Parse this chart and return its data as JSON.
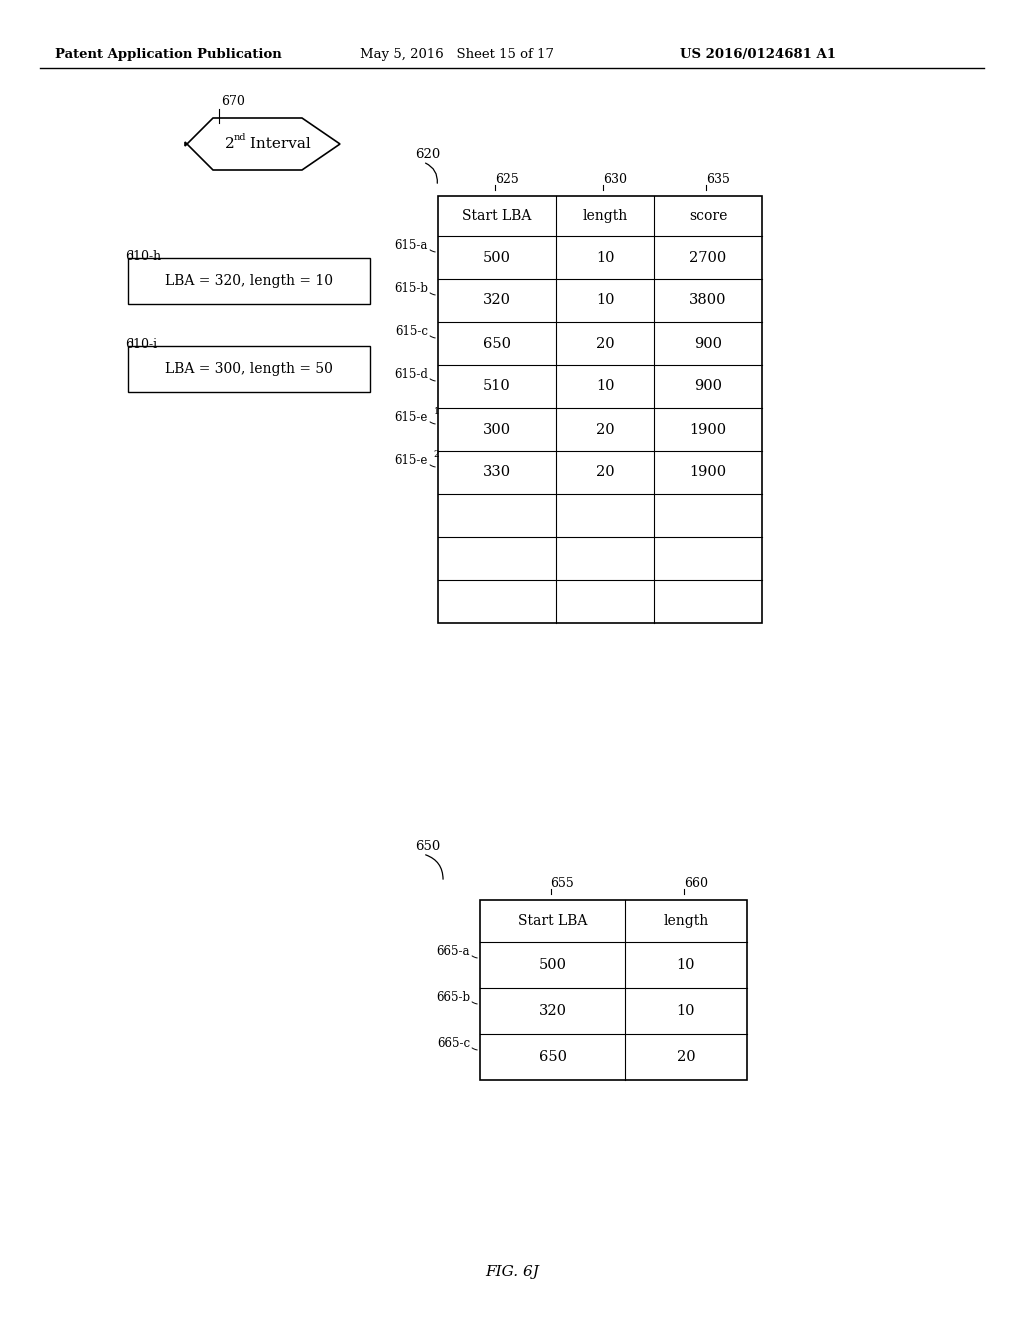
{
  "header_left": "Patent Application Publication",
  "header_mid": "May 5, 2016   Sheet 15 of 17",
  "header_right": "US 2016/0124681 A1",
  "fig_label": "FIG. 6J",
  "arrow_label": "670",
  "box_h_label": "610-h",
  "box_h_text": "LBA = 320, length = 10",
  "box_i_label": "610-i",
  "box_i_text": "LBA = 300, length = 50",
  "table1_label": "620",
  "col1_label": "625",
  "col2_label": "630",
  "col3_label": "635",
  "col1_header": "Start LBA",
  "col2_header": "length",
  "col3_header": "score",
  "table1_rows": [
    {
      "label": "615-a",
      "sup": "",
      "start_lba": "500",
      "length": "10",
      "score": "2700"
    },
    {
      "label": "615-b",
      "sup": "",
      "start_lba": "320",
      "length": "10",
      "score": "3800"
    },
    {
      "label": "615-c",
      "sup": "",
      "start_lba": "650",
      "length": "20",
      "score": "900"
    },
    {
      "label": "615-d",
      "sup": "",
      "start_lba": "510",
      "length": "10",
      "score": "900"
    },
    {
      "label": "615-e",
      "sup": "1",
      "start_lba": "300",
      "length": "20",
      "score": "1900"
    },
    {
      "label": "615-e",
      "sup": "2",
      "start_lba": "330",
      "length": "20",
      "score": "1900"
    },
    {
      "label": "",
      "sup": "",
      "start_lba": "",
      "length": "",
      "score": ""
    },
    {
      "label": "",
      "sup": "",
      "start_lba": "",
      "length": "",
      "score": ""
    },
    {
      "label": "",
      "sup": "",
      "start_lba": "",
      "length": "",
      "score": ""
    }
  ],
  "table2_label": "650",
  "col4_label": "655",
  "col5_label": "660",
  "col4_header": "Start LBA",
  "col5_header": "length",
  "table2_rows": [
    {
      "label": "665-a",
      "start_lba": "500",
      "length": "10"
    },
    {
      "label": "665-b",
      "start_lba": "320",
      "length": "10"
    },
    {
      "label": "665-c",
      "start_lba": "650",
      "length": "20"
    }
  ],
  "bg_color": "#ffffff",
  "line_color": "#000000",
  "text_color": "#000000"
}
